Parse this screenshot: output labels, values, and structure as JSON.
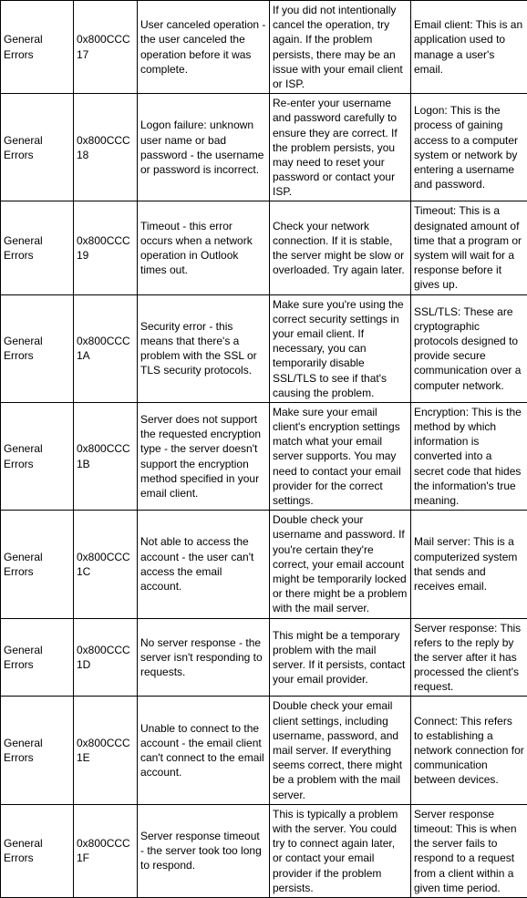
{
  "rows": [
    {
      "category": "General Errors",
      "code": "0x800CCC17",
      "description": "User canceled operation - the user canceled the operation before it was complete.",
      "action": "If you did not intentionally cancel the operation, try again. If the problem persists, there may be an issue with your email client or ISP.",
      "term": "Email client: This is an application used to manage a user's email."
    },
    {
      "category": "General Errors",
      "code": "0x800CCC18",
      "description": "Logon failure: unknown user name or bad password - the username or password is incorrect.",
      "action": "Re-enter your username and password carefully to ensure they are correct. If the problem persists, you may need to reset your password or contact your ISP.",
      "term": "Logon: This is the process of gaining access to a computer system or network by entering a username and password."
    },
    {
      "category": "General Errors",
      "code": "0x800CCC19",
      "description": "Timeout - this error occurs when a network operation in Outlook times out.",
      "action": "Check your network connection. If it is stable, the server might be slow or overloaded. Try again later.",
      "term": "Timeout: This is a designated amount of time that a program or system will wait for a response before it gives up."
    },
    {
      "category": "General Errors",
      "code": "0x800CCC1A",
      "description": "Security error - this means that there's a problem with the SSL or TLS security protocols.",
      "action": "Make sure you're using the correct security settings in your email client. If necessary, you can temporarily disable SSL/TLS to see if that's causing the problem.",
      "term": "SSL/TLS: These are cryptographic protocols designed to provide secure communication over a computer network."
    },
    {
      "category": "General Errors",
      "code": "0x800CCC1B",
      "description": "Server does not support the requested encryption type - the server doesn't support the encryption method specified in your email client.",
      "action": "Make sure your email client's encryption settings match what your email server supports. You may need to contact your email provider for the correct settings.",
      "term": "Encryption: This is the method by which information is converted into a secret code that hides the information's true meaning."
    },
    {
      "category": "General Errors",
      "code": "0x800CCC1C",
      "description": "Not able to access the account - the user can't access the email account.",
      "action": "Double check your username and password. If you're certain they're correct, your email account might be temporarily locked or there might be a problem with the mail server.",
      "term": "Mail server: This is a computerized system that sends and receives email."
    },
    {
      "category": "General Errors",
      "code": "0x800CCC1D",
      "description": "No server response - the server isn't responding to requests.",
      "action": "This might be a temporary problem with the mail server. If it persists, contact your email provider.",
      "term": "Server response: This refers to the reply by the server after it has processed the client's request."
    },
    {
      "category": "General Errors",
      "code": "0x800CCC1E",
      "description": "Unable to connect to the account - the email client can't connect to the email account.",
      "action": "Double check your email client settings, including username, password, and mail server. If everything seems correct, there might be a problem with the mail server.",
      "term": "Connect: This refers to establishing a network connection for communication between devices."
    },
    {
      "category": "General Errors",
      "code": "0x800CCC1F",
      "description": "Server response timeout - the server took too long to respond.",
      "action": "This is typically a problem with the server. You could try to connect again later, or contact your email provider if the problem persists.",
      "term": "Server response timeout: This is when the server fails to respond to a request from a client within a given time period."
    }
  ]
}
